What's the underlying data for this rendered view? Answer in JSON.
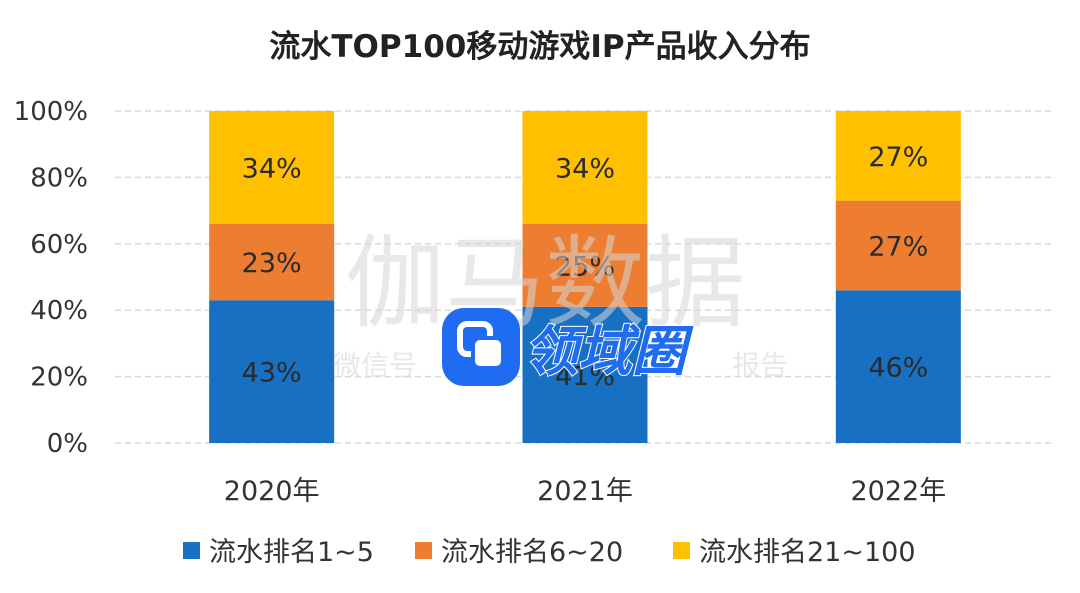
{
  "chart_data": {
    "type": "bar",
    "stacked": true,
    "title": "流水TOP100移动游戏IP产品收入分布",
    "categories": [
      "2020年",
      "2021年",
      "2022年"
    ],
    "series": [
      {
        "name": "流水排名1~5",
        "color": "#1770c2",
        "values": [
          43,
          41,
          46
        ],
        "labels": [
          "43%",
          "41%",
          "46%"
        ]
      },
      {
        "name": "流水排名6~20",
        "color": "#ed7d31",
        "values": [
          23,
          25,
          27
        ],
        "labels": [
          "23%",
          "25%",
          "27%"
        ]
      },
      {
        "name": "流水排名21~100",
        "color": "#ffc000",
        "values": [
          34,
          34,
          27
        ],
        "labels": [
          "34%",
          "34%",
          "27%"
        ]
      }
    ],
    "yticks": [
      "0%",
      "20%",
      "40%",
      "60%",
      "80%",
      "100%"
    ],
    "ylim": [
      0,
      100
    ],
    "grid": true,
    "legend": "bottom"
  },
  "watermark": {
    "main": "伽马数据",
    "sub_left": "微信号",
    "sub_right": "报告",
    "logo_text": "领域圈",
    "logo_color": "#1f6cf0"
  }
}
